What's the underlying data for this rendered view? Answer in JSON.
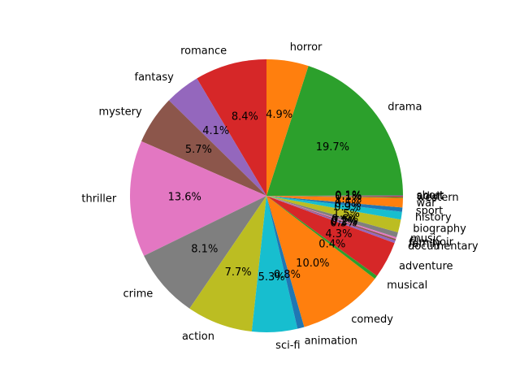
{
  "chart_data": {
    "type": "pie",
    "title": "",
    "start_angle_deg": 90,
    "direction": "counterclockwise",
    "value_format": "percent_1dp",
    "slices": [
      {
        "label": "romance",
        "value": 8.4,
        "pct_label": "8.4%",
        "color": "#d62728"
      },
      {
        "label": "fantasy",
        "value": 4.1,
        "pct_label": "4.1%",
        "color": "#9467bd"
      },
      {
        "label": "mystery",
        "value": 5.7,
        "pct_label": "5.7%",
        "color": "#8c564b"
      },
      {
        "label": "thriller",
        "value": 13.6,
        "pct_label": "13.6%",
        "color": "#e377c2"
      },
      {
        "label": "crime",
        "value": 8.1,
        "pct_label": "8.1%",
        "color": "#7f7f7f"
      },
      {
        "label": "action",
        "value": 7.7,
        "pct_label": "7.7%",
        "color": "#bcbd22"
      },
      {
        "label": "sci-fi",
        "value": 5.3,
        "pct_label": "5.3%",
        "color": "#17becf"
      },
      {
        "label": "animation",
        "value": 0.8,
        "pct_label": "0.8%",
        "color": "#1f77b4"
      },
      {
        "label": "comedy",
        "value": 10.0,
        "pct_label": "10.0%",
        "color": "#ff7f0e"
      },
      {
        "label": "musical",
        "value": 0.4,
        "pct_label": "0.4%",
        "color": "#2ca02c"
      },
      {
        "label": "adventure",
        "value": 4.3,
        "pct_label": "4.3%",
        "color": "#d62728"
      },
      {
        "label": "documentary",
        "value": 0.3,
        "pct_label": "0.3%",
        "color": "#9467bd"
      },
      {
        "label": "family",
        "value": 0.2,
        "pct_label": "0.2%",
        "color": "#8c564b"
      },
      {
        "label": "film-noir",
        "value": 0.2,
        "pct_label": "0.2%",
        "color": "#e377c2"
      },
      {
        "label": "music",
        "value": 0.6,
        "pct_label": "0.6%",
        "color": "#7f7f7f"
      },
      {
        "label": "biography",
        "value": 1.5,
        "pct_label": "1.5%",
        "color": "#bcbd22"
      },
      {
        "label": "history",
        "value": 0.9,
        "pct_label": "0.9%",
        "color": "#17becf"
      },
      {
        "label": "sport",
        "value": 0.5,
        "pct_label": "0.5%",
        "color": "#1f77b4"
      },
      {
        "label": "war",
        "value": 1.1,
        "pct_label": "1.1%",
        "color": "#ff7f0e"
      },
      {
        "label": "western",
        "value": 0.1,
        "pct_label": "0.1%",
        "color": "#2ca02c"
      },
      {
        "label": "adult",
        "value": 0.1,
        "pct_label": "0.1%",
        "color": "#d62728"
      },
      {
        "label": "short",
        "value": 0.1,
        "pct_label": "0.1%",
        "color": "#9467bd"
      },
      {
        "label": "drama",
        "value": 19.7,
        "pct_label": "19.7%",
        "color": "#2ca02c"
      },
      {
        "label": "horror",
        "value": 4.9,
        "pct_label": "4.9%",
        "color": "#ff7f0e"
      }
    ]
  }
}
